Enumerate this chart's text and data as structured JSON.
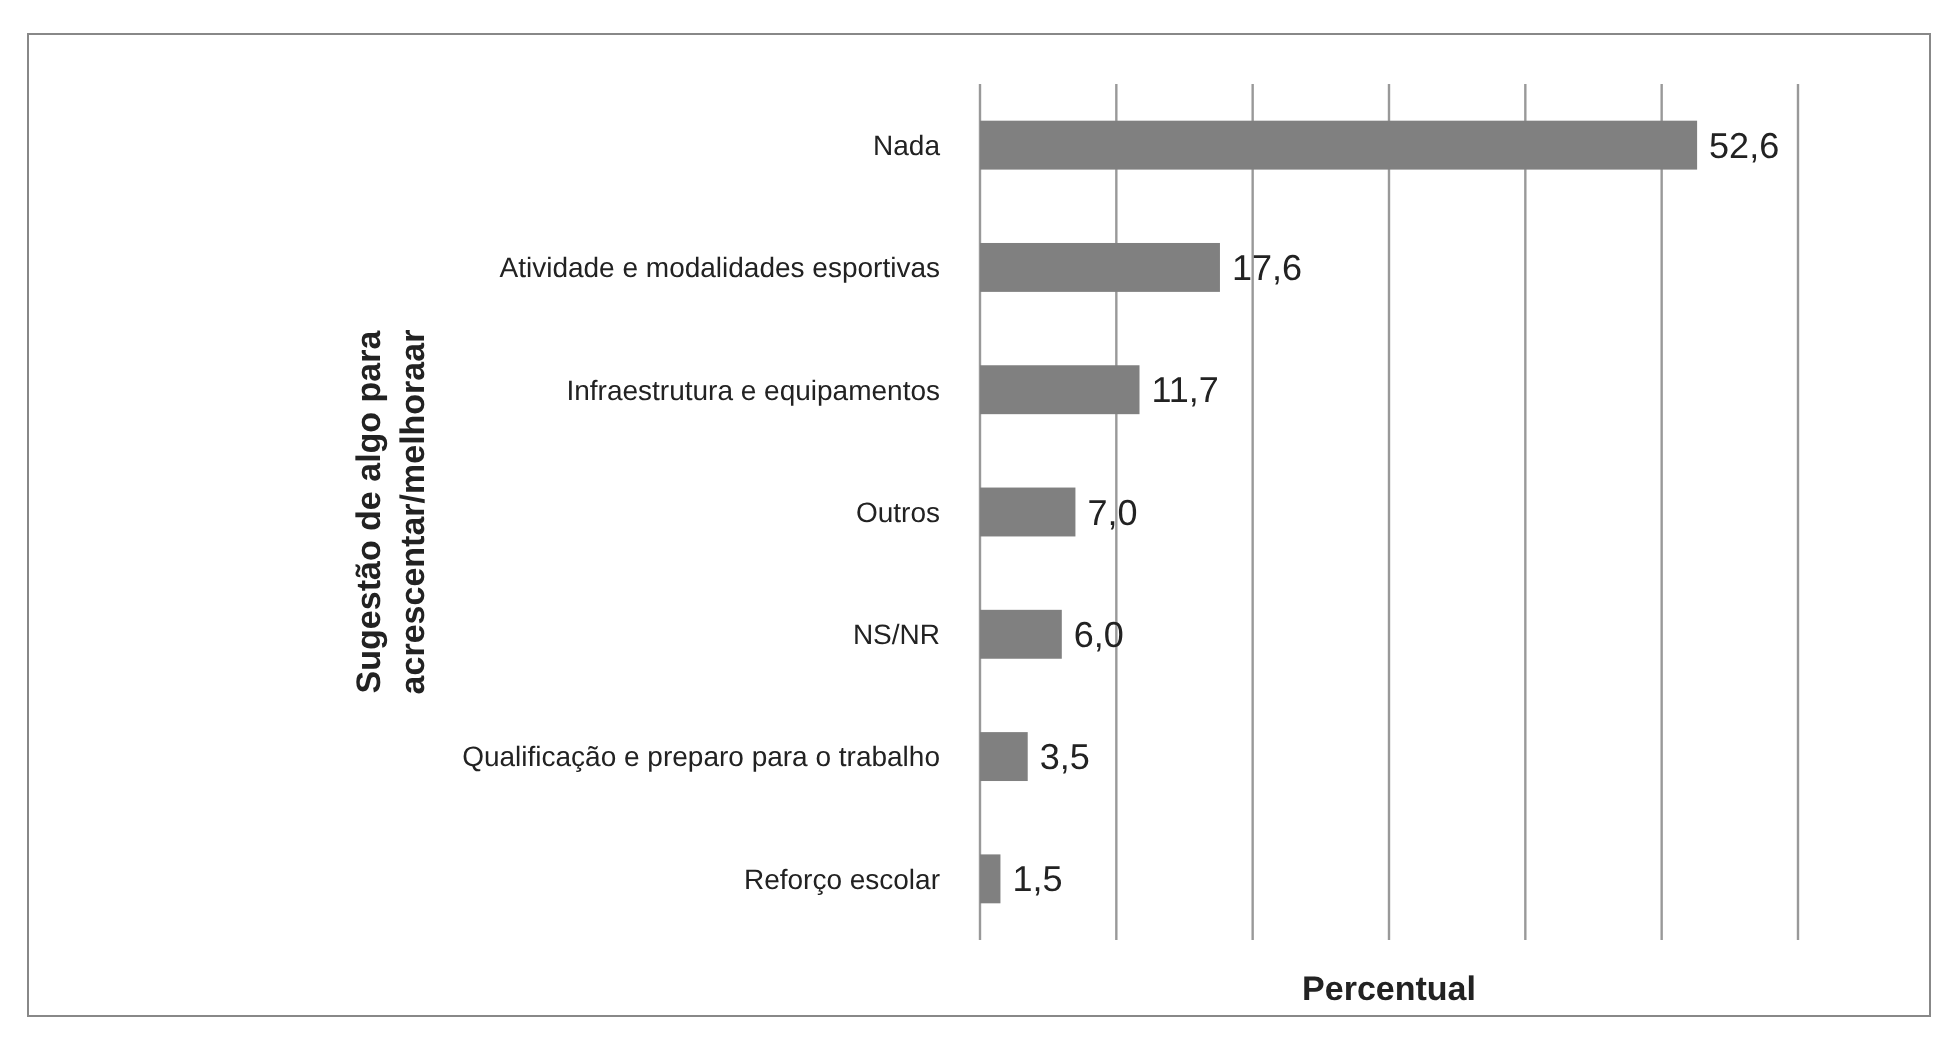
{
  "chart_data": {
    "type": "bar",
    "orientation": "horizontal",
    "xlabel": "Percentual",
    "ylabel": "Sugestão de algo para\nacrescentar/melhoraar",
    "categories": [
      "Nada",
      "Atividade e modalidades esportivas",
      "Infraestrutura e equipamentos",
      "Outros",
      "NS/NR",
      "Qualificação e preparo para o trabalho",
      "Reforço escolar"
    ],
    "values": [
      52.6,
      17.6,
      11.7,
      7.0,
      6.0,
      3.5,
      1.5
    ],
    "value_labels": [
      "52,6",
      "17,6",
      "11,7",
      "7,0",
      "6,0",
      "3,5",
      "1,5"
    ],
    "color": "#808080",
    "xlim": [
      0,
      60
    ],
    "xticks": [
      {
        "value": 0,
        "label": null
      },
      {
        "value": 10,
        "label": null
      },
      {
        "value": 20,
        "label": null
      },
      {
        "value": 30,
        "label": null
      },
      {
        "value": 40,
        "label": null
      },
      {
        "value": 50,
        "label": null
      },
      {
        "value": 60,
        "label": null
      }
    ],
    "grid": "x"
  }
}
